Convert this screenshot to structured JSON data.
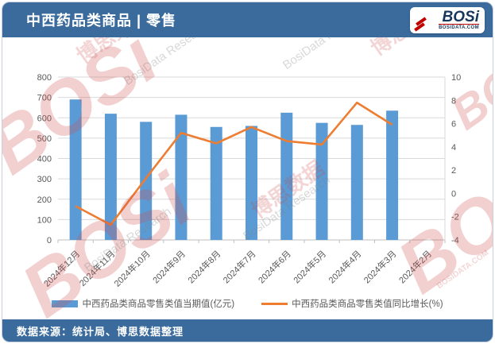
{
  "header": {
    "title": "中西药品类商品 | 零售",
    "logo": {
      "wordmark": "BOSi",
      "site": "BOSIDATA.COM"
    }
  },
  "chart_data": {
    "type": "bar",
    "title": "中西药品类商品 | 零售",
    "categories": [
      "2024年12月",
      "2024年11月",
      "2024年10月",
      "2024年9月",
      "2024年8月",
      "2024年7月",
      "2024年6月",
      "2024年5月",
      "2024年4月",
      "2024年3月",
      "2024年2月"
    ],
    "series": [
      {
        "name": "中西药品类商品零售类值当期值(亿元)",
        "type": "bar",
        "axis": "left",
        "color": "#5B9BD5",
        "values": [
          690,
          620,
          580,
          615,
          555,
          560,
          625,
          575,
          565,
          635,
          null
        ]
      },
      {
        "name": "中西药品类商品零售类值同比增长(%)",
        "type": "line",
        "axis": "right",
        "color": "#ED7D31",
        "values": [
          -1.1,
          -2.7,
          1.3,
          5.2,
          4.3,
          5.7,
          4.5,
          4.2,
          7.8,
          5.9,
          null
        ]
      }
    ],
    "left_axis": {
      "min": 0,
      "max": 800,
      "step": 100
    },
    "right_axis": {
      "min": -4,
      "max": 10,
      "step": 2
    },
    "grid": true,
    "legend_position": "bottom"
  },
  "watermark": {
    "cn": "博思数据",
    "en": "BosiData Research",
    "logo": "BOSi",
    "site": "BOSIDATA.COM"
  },
  "footer": {
    "source": "数据来源：统计局、博思数据整理"
  },
  "colors": {
    "header_bg": "#3A6B9C",
    "bar": "#5B9BD5",
    "line": "#ED7D31",
    "grid": "#D9D9D9",
    "axis_line": "#BFBFBF",
    "axis_text": "#595959",
    "logo_red": "#C00000",
    "logo_navy": "#16365C"
  }
}
